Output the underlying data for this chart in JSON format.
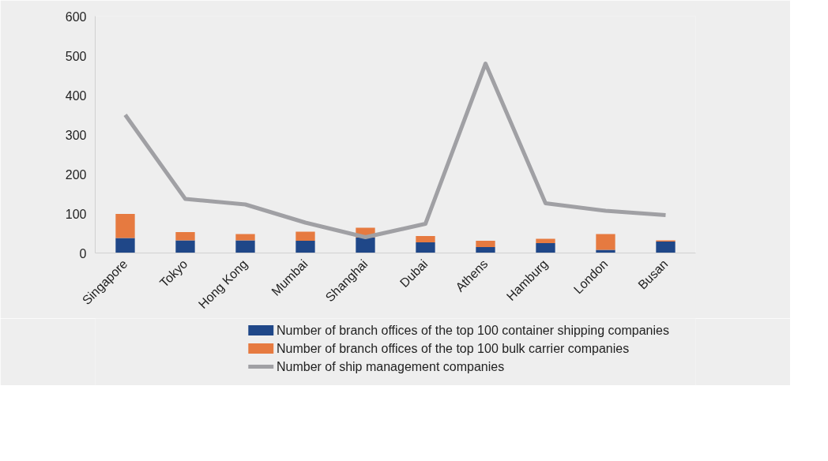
{
  "chart_data": {
    "type": "bar",
    "stacked": true,
    "categories": [
      "Singapore",
      "Tokyo",
      "Hong Kong",
      "Mumbai",
      "Shanghai",
      "Dubai",
      "Athens",
      "Hamburg",
      "London",
      "Busan"
    ],
    "series": [
      {
        "name": "Number of branch offices of the top 100 container shipping companies",
        "color": "#1f4788",
        "values": [
          38,
          32,
          32,
          31,
          39,
          27,
          15,
          25,
          8,
          29
        ]
      },
      {
        "name": "Number of branch offices of the top 100 bulk carrier companies",
        "color": "#e67a40",
        "values": [
          61,
          21,
          16,
          23,
          25,
          16,
          16,
          11,
          40,
          3
        ]
      },
      {
        "name": "Number of ship management companies",
        "color": "#a0a0a4",
        "type": "line",
        "values": [
          350,
          137,
          123,
          77,
          40,
          74,
          480,
          126,
          107,
          96
        ]
      }
    ],
    "ylim": [
      0,
      600
    ],
    "yticks": [
      0,
      100,
      200,
      300,
      400,
      500,
      600
    ],
    "grid": false,
    "legend": "bottom",
    "marker": "none",
    "line_style": "solid"
  }
}
